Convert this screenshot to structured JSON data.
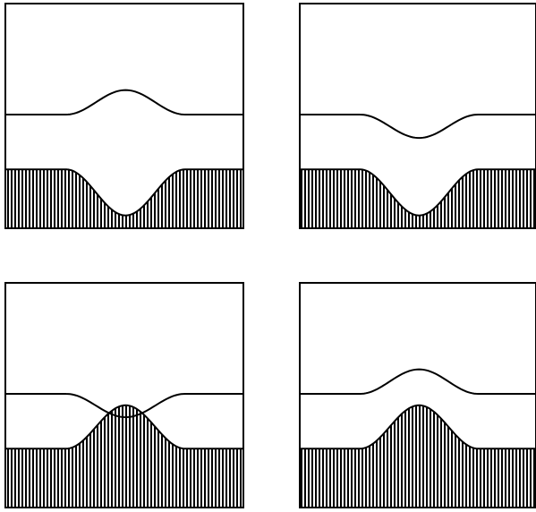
{
  "figure": {
    "colors": {
      "background": "#ffffff",
      "ink": "#000000"
    },
    "panels": [
      {
        "id": "top-left",
        "bed": "trough",
        "surface": "crest"
      },
      {
        "id": "top-right",
        "bed": "trough",
        "surface": "trough"
      },
      {
        "id": "bottom-left",
        "bed": "bump",
        "surface": "trough"
      },
      {
        "id": "bottom-right",
        "bed": "bump",
        "surface": "crest"
      }
    ]
  }
}
